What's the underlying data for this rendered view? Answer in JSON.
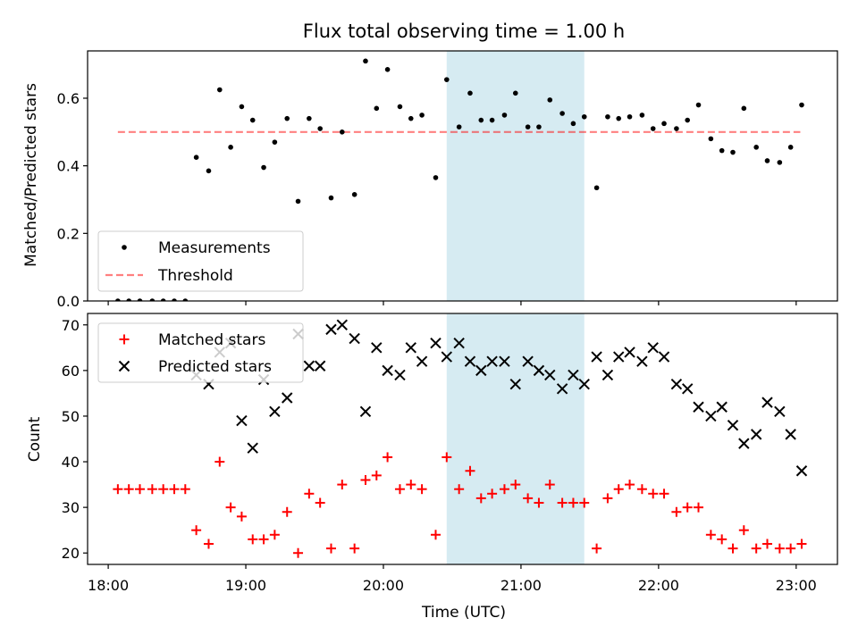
{
  "chart_data": [
    {
      "type": "scatter",
      "title": "Flux total observing time = 1.00 h",
      "xlabel": "",
      "ylabel": "Matched/Predicted stars",
      "xlim": [
        17.85,
        23.3
      ],
      "ylim": [
        0,
        0.74
      ],
      "yticks": [
        0.0,
        0.2,
        0.4,
        0.6
      ],
      "ytick_labels": [
        "0.0",
        "0.2",
        "0.4",
        "0.6"
      ],
      "xticks": [
        18,
        19,
        20,
        21,
        22,
        23
      ],
      "highlight_span": [
        20.46,
        21.46
      ],
      "threshold": {
        "x": [
          18.07,
          23.03
        ],
        "y": 0.5
      },
      "legend": {
        "location": "lower-left",
        "entries": [
          "Measurements",
          "Threshold"
        ]
      },
      "series": [
        {
          "name": "Measurements",
          "x": [
            18.07,
            18.15,
            18.23,
            18.32,
            18.4,
            18.48,
            18.56,
            18.64,
            18.73,
            18.81,
            18.89,
            18.97,
            19.05,
            19.13,
            19.21,
            19.3,
            19.38,
            19.46,
            19.54,
            19.62,
            19.7,
            19.79,
            19.87,
            19.95,
            20.03,
            20.12,
            20.2,
            20.28,
            20.38,
            20.46,
            20.55,
            20.63,
            20.71,
            20.79,
            20.88,
            20.96,
            21.05,
            21.13,
            21.21,
            21.3,
            21.38,
            21.46,
            21.55,
            21.63,
            21.71,
            21.79,
            21.88,
            21.96,
            22.04,
            22.13,
            22.21,
            22.29,
            22.38,
            22.46,
            22.54,
            22.62,
            22.71,
            22.79,
            22.88,
            22.96,
            23.04
          ],
          "y": [
            0.0,
            0.0,
            0.0,
            0.0,
            0.0,
            0.0,
            0.0,
            0.425,
            0.385,
            0.625,
            0.455,
            0.575,
            0.535,
            0.395,
            0.47,
            0.54,
            0.295,
            0.54,
            0.51,
            0.305,
            0.5,
            0.315,
            0.71,
            0.57,
            0.685,
            0.575,
            0.54,
            0.55,
            0.365,
            0.655,
            0.515,
            0.615,
            0.535,
            0.535,
            0.55,
            0.615,
            0.515,
            0.515,
            0.595,
            0.555,
            0.525,
            0.545,
            0.335,
            0.545,
            0.54,
            0.545,
            0.55,
            0.51,
            0.525,
            0.51,
            0.535,
            0.58,
            0.48,
            0.445,
            0.44,
            0.57,
            0.455,
            0.415,
            0.41,
            0.455,
            0.58
          ]
        }
      ]
    },
    {
      "type": "scatter",
      "title": "",
      "xlabel": "Time (UTC)",
      "ylabel": "Count",
      "xlim": [
        17.85,
        23.3
      ],
      "ylim": [
        17.5,
        72.5
      ],
      "yticks": [
        20,
        30,
        40,
        50,
        60,
        70
      ],
      "ytick_labels": [
        "20",
        "30",
        "40",
        "50",
        "60",
        "70"
      ],
      "xticks": [
        18,
        19,
        20,
        21,
        22,
        23
      ],
      "xtick_labels": [
        "18:00",
        "19:00",
        "20:00",
        "21:00",
        "22:00",
        "23:00"
      ],
      "highlight_span": [
        20.46,
        21.46
      ],
      "legend": {
        "location": "upper-left",
        "entries": [
          "Matched stars",
          "Predicted stars"
        ]
      },
      "series": [
        {
          "name": "Matched stars",
          "x": [
            18.07,
            18.15,
            18.23,
            18.32,
            18.4,
            18.48,
            18.56,
            18.64,
            18.73,
            18.81,
            18.89,
            18.97,
            19.05,
            19.13,
            19.21,
            19.3,
            19.38,
            19.46,
            19.54,
            19.62,
            19.7,
            19.79,
            19.87,
            19.95,
            20.03,
            20.12,
            20.2,
            20.28,
            20.38,
            20.46,
            20.55,
            20.63,
            20.71,
            20.79,
            20.88,
            20.96,
            21.05,
            21.13,
            21.21,
            21.3,
            21.38,
            21.46,
            21.55,
            21.63,
            21.71,
            21.79,
            21.88,
            21.96,
            22.04,
            22.13,
            22.21,
            22.29,
            22.38,
            22.46,
            22.54,
            22.62,
            22.71,
            22.79,
            22.88,
            22.96,
            23.04
          ],
          "y": [
            34,
            34,
            34,
            34,
            34,
            34,
            34,
            25,
            22,
            40,
            30,
            28,
            23,
            23,
            24,
            29,
            20,
            33,
            31,
            21,
            35,
            21,
            36,
            37,
            41,
            34,
            35,
            34,
            24,
            41,
            34,
            38,
            32,
            33,
            34,
            35,
            32,
            31,
            35,
            31,
            31,
            31,
            21,
            32,
            34,
            35,
            34,
            33,
            33,
            29,
            30,
            30,
            24,
            23,
            21,
            25,
            21,
            22,
            21,
            21,
            22
          ]
        },
        {
          "name": "Predicted stars",
          "x": [
            18.64,
            18.73,
            18.81,
            18.89,
            18.97,
            19.05,
            19.13,
            19.21,
            19.3,
            19.38,
            19.46,
            19.54,
            19.62,
            19.7,
            19.79,
            19.87,
            19.95,
            20.03,
            20.12,
            20.2,
            20.28,
            20.38,
            20.46,
            20.55,
            20.63,
            20.71,
            20.79,
            20.88,
            20.96,
            21.05,
            21.13,
            21.21,
            21.3,
            21.38,
            21.46,
            21.55,
            21.63,
            21.71,
            21.79,
            21.88,
            21.96,
            22.04,
            22.13,
            22.21,
            22.29,
            22.38,
            22.46,
            22.54,
            22.62,
            22.71,
            22.79,
            22.88,
            22.96,
            23.04
          ],
          "y": [
            59,
            57,
            64,
            66,
            49,
            43,
            58,
            51,
            54,
            68,
            61,
            61,
            69,
            70,
            67,
            51,
            65,
            60,
            59,
            65,
            62,
            66,
            63,
            66,
            62,
            60,
            62,
            62,
            57,
            62,
            60,
            59,
            56,
            59,
            57,
            63,
            59,
            63,
            64,
            62,
            65,
            63,
            57,
            56,
            52,
            50,
            52,
            48,
            44,
            46,
            53,
            51,
            46,
            38
          ]
        }
      ]
    }
  ]
}
